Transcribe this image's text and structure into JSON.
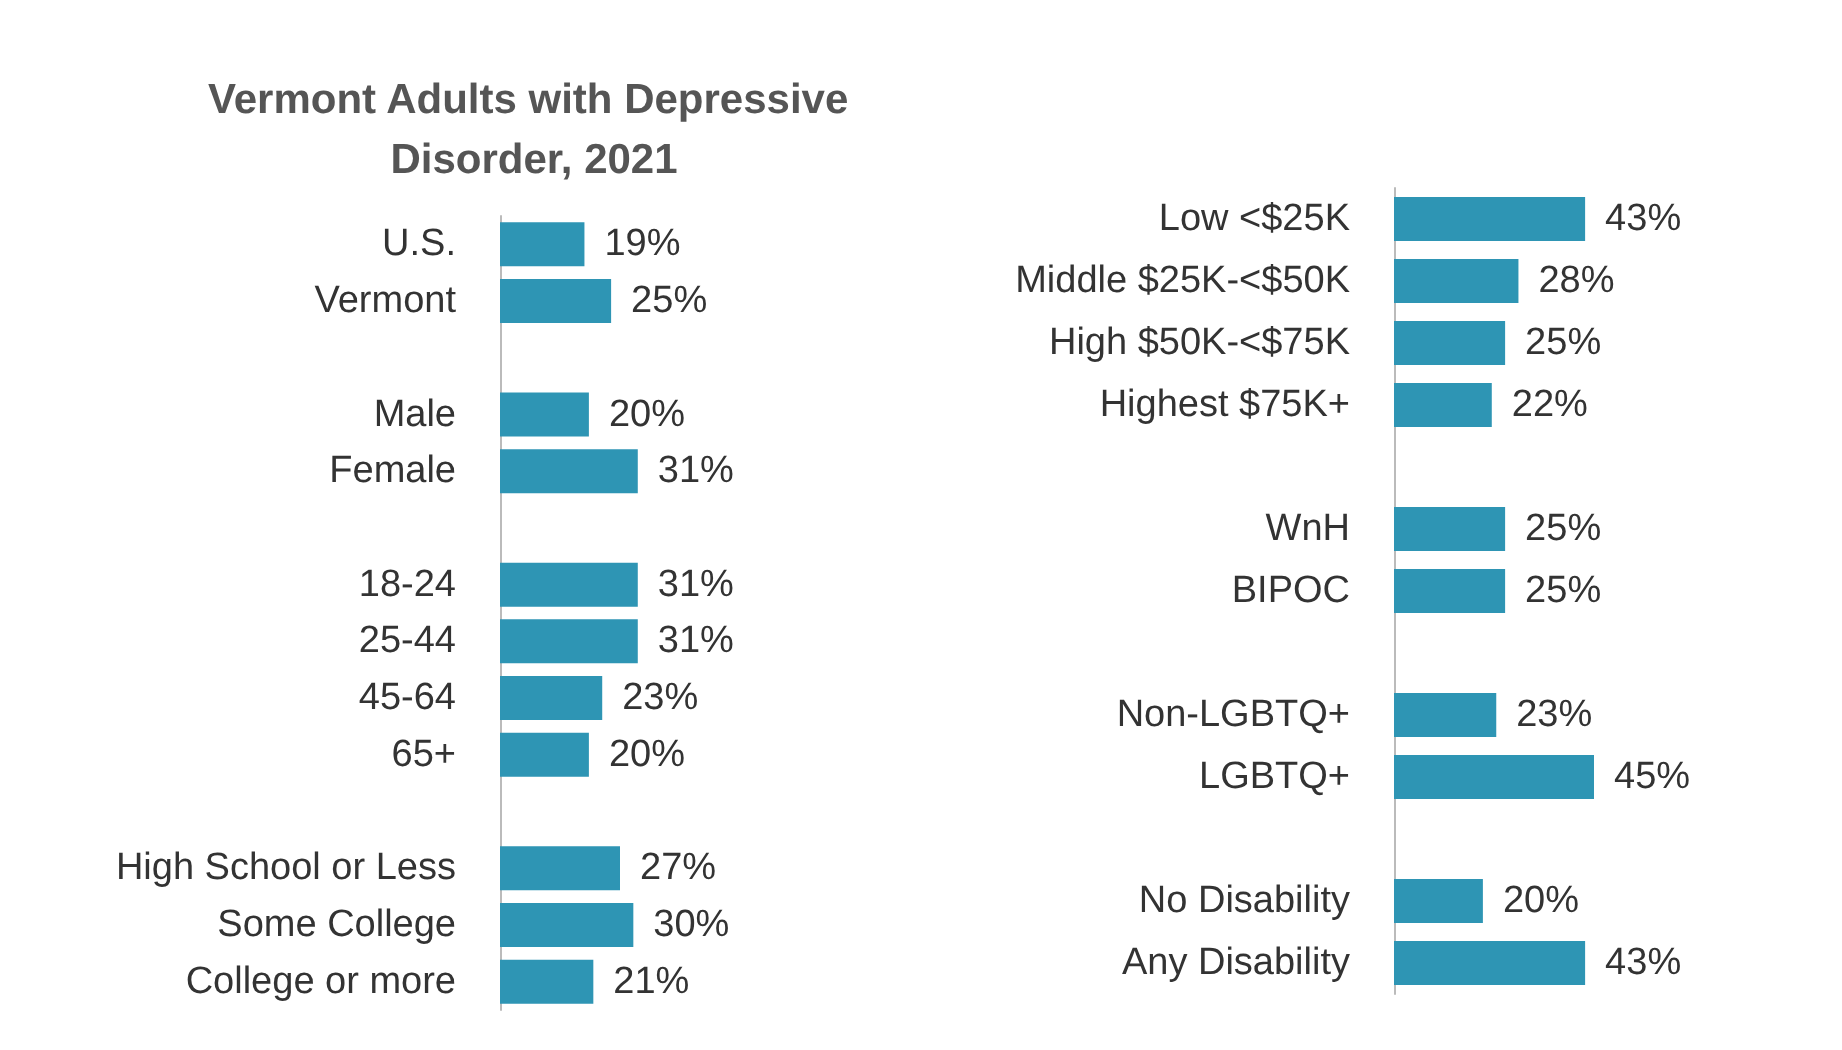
{
  "chart_data": [
    {
      "type": "bar",
      "orientation": "horizontal",
      "title": "Vermont Adults with Depressive Disorder, 2021",
      "categories": [
        "U.S.",
        "Vermont",
        null,
        "Male",
        "Female",
        null,
        "18-24",
        "25-44",
        "45-64",
        "65+",
        null,
        "High School or Less",
        "Some College",
        "College or more"
      ],
      "values": [
        19,
        25,
        null,
        20,
        31,
        null,
        31,
        31,
        23,
        20,
        null,
        27,
        30,
        21
      ],
      "value_labels": [
        "19%",
        "25%",
        null,
        "20%",
        "31%",
        null,
        "31%",
        "31%",
        "23%",
        "20%",
        null,
        "27%",
        "30%",
        "21%"
      ],
      "color": "#2e95b4",
      "tick_labels": "y"
    },
    {
      "type": "bar",
      "orientation": "horizontal",
      "categories": [
        "Low <$25K",
        "Middle $25K-<$50K",
        "High $50K-<$75K",
        "Highest $75K+",
        null,
        "WnH",
        "BIPOC",
        null,
        "Non-LGBTQ+",
        "LGBTQ+",
        null,
        "No Disability",
        "Any Disability"
      ],
      "values": [
        43,
        28,
        25,
        22,
        null,
        25,
        25,
        null,
        23,
        45,
        null,
        20,
        43
      ],
      "value_labels": [
        "43%",
        "28%",
        "25%",
        "22%",
        null,
        "25%",
        "25%",
        null,
        "23%",
        "45%",
        null,
        "20%",
        "43%"
      ],
      "color": "#2e95b4",
      "tick_labels": "y"
    }
  ]
}
